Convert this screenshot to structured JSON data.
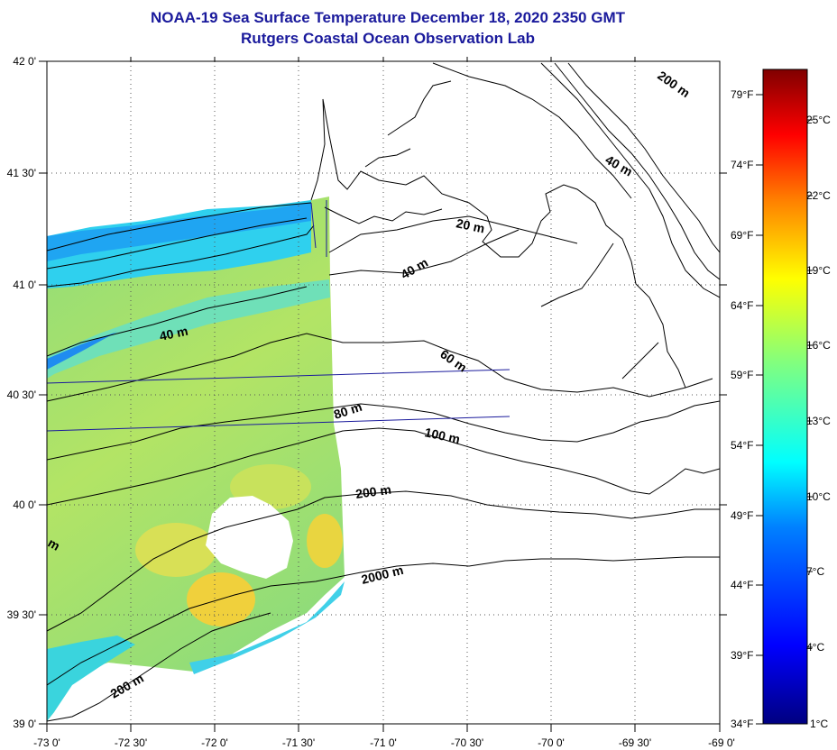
{
  "titles": {
    "line1": "NOAA-19 Sea Surface Temperature December 18, 2020 2350 GMT",
    "line2": "Rutgers Coastal Ocean Observation Lab"
  },
  "map": {
    "lon_labels": [
      "-73 0'",
      "-72 30'",
      "-72 0'",
      "-71 30'",
      "-71 0'",
      "-70 30'",
      "-70 0'",
      "-69 30'",
      "-69 0'"
    ],
    "lat_labels": [
      "42 0'",
      "41 30'",
      "41 0'",
      "40 30'",
      "40 0'",
      "39 30'",
      "39 0'"
    ],
    "contour_labels": [
      "200 m",
      "40 m",
      "20 m",
      "40 m",
      "40 m",
      "60 m",
      "80 m",
      "100 m",
      "200 m",
      "2000 m",
      "200 m",
      "m"
    ]
  },
  "colorbar": {
    "fahrenheit": [
      "79°F",
      "74°F",
      "69°F",
      "64°F",
      "59°F",
      "54°F",
      "49°F",
      "44°F",
      "39°F",
      "34°F"
    ],
    "celsius": [
      "25°C",
      "22°C",
      "19°C",
      "16°C",
      "13°C",
      "10°C",
      "7°C",
      "4°C",
      "1°C"
    ],
    "stops": [
      "#000080",
      "#0000ff",
      "#0080ff",
      "#00ffff",
      "#80ff80",
      "#ffff00",
      "#ff8000",
      "#ff0000",
      "#800000"
    ]
  },
  "colors": {
    "title": "#1a1a9c",
    "grid": "#555555",
    "land": "#ffffff",
    "sst_warm": "#f2d53a",
    "sst_mid": "#9fe06a",
    "sst_cool": "#19d6ef",
    "sst_cold": "#1f6bf0"
  }
}
